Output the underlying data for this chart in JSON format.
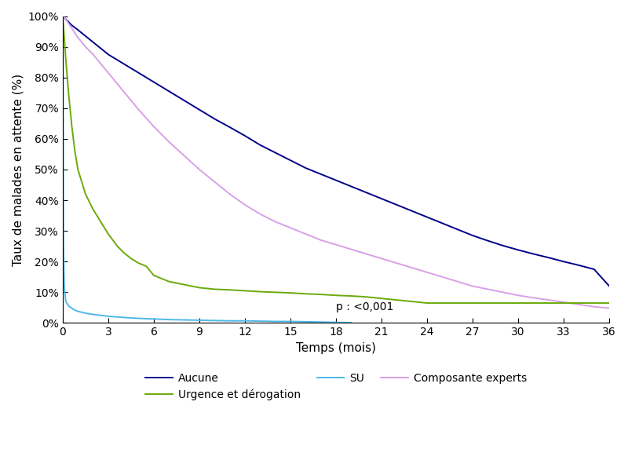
{
  "xlabel": "Temps (mois)",
  "ylabel": "Taux de malades en attente (%)",
  "annotation": "p : <0,001",
  "x_ticks": [
    0,
    3,
    6,
    9,
    12,
    15,
    18,
    21,
    24,
    27,
    30,
    33,
    36
  ],
  "x_lim": [
    0,
    36
  ],
  "y_lim": [
    0,
    1.0
  ],
  "y_ticks": [
    0.0,
    0.1,
    0.2,
    0.3,
    0.4,
    0.5,
    0.6,
    0.7,
    0.8,
    0.9,
    1.0
  ],
  "y_tick_labels": [
    "0%",
    "10%",
    "20%",
    "30%",
    "40%",
    "50%",
    "60%",
    "70%",
    "80%",
    "90%",
    "100%"
  ],
  "series": {
    "Aucune": {
      "color": "#00008B",
      "linewidth": 1.4,
      "x": [
        0,
        0.3,
        0.6,
        1,
        1.5,
        2,
        2.5,
        3,
        4,
        5,
        6,
        7,
        8,
        9,
        10,
        11,
        12,
        13,
        14,
        15,
        16,
        17,
        18,
        19,
        20,
        21,
        22,
        23,
        24,
        25,
        26,
        27,
        28,
        29,
        30,
        31,
        32,
        33,
        34,
        35,
        36
      ],
      "y": [
        1.0,
        0.985,
        0.97,
        0.955,
        0.935,
        0.915,
        0.895,
        0.875,
        0.845,
        0.815,
        0.785,
        0.755,
        0.725,
        0.695,
        0.665,
        0.638,
        0.61,
        0.58,
        0.555,
        0.53,
        0.505,
        0.485,
        0.465,
        0.445,
        0.425,
        0.405,
        0.385,
        0.365,
        0.345,
        0.325,
        0.305,
        0.285,
        0.268,
        0.252,
        0.238,
        0.225,
        0.213,
        0.2,
        0.188,
        0.175,
        0.12
      ]
    },
    "Urgence et dérogation": {
      "color": "#6aaa0a",
      "linewidth": 1.4,
      "x": [
        0,
        0.2,
        0.4,
        0.6,
        0.8,
        1,
        1.5,
        2,
        2.5,
        3,
        3.3,
        3.6,
        4,
        4.5,
        5,
        5.5,
        6,
        6.5,
        7,
        8,
        9,
        10,
        11,
        12,
        13,
        14,
        15,
        16,
        17,
        18,
        19,
        20,
        21,
        22,
        23,
        24,
        36
      ],
      "y": [
        1.0,
        0.86,
        0.74,
        0.64,
        0.56,
        0.5,
        0.42,
        0.37,
        0.33,
        0.29,
        0.27,
        0.25,
        0.23,
        0.21,
        0.195,
        0.185,
        0.155,
        0.145,
        0.135,
        0.125,
        0.115,
        0.11,
        0.108,
        0.105,
        0.102,
        0.1,
        0.098,
        0.095,
        0.093,
        0.09,
        0.088,
        0.085,
        0.08,
        0.075,
        0.07,
        0.065,
        0.065
      ]
    },
    "SU": {
      "color": "#4eb8e8",
      "linewidth": 1.4,
      "x": [
        0,
        0.05,
        0.1,
        0.2,
        0.4,
        0.6,
        0.8,
        1,
        1.5,
        2,
        2.5,
        3,
        4,
        5,
        6,
        7,
        8,
        9,
        10,
        11,
        12,
        13,
        14,
        15,
        16,
        17,
        18,
        19
      ],
      "y": [
        1.0,
        0.25,
        0.12,
        0.07,
        0.055,
        0.048,
        0.042,
        0.038,
        0.032,
        0.028,
        0.025,
        0.022,
        0.018,
        0.015,
        0.013,
        0.011,
        0.01,
        0.009,
        0.008,
        0.007,
        0.007,
        0.006,
        0.005,
        0.005,
        0.004,
        0.003,
        0.002,
        0.001
      ]
    },
    "Composante experts": {
      "color": "#d8a0e8",
      "linewidth": 1.4,
      "x": [
        0,
        0.2,
        0.4,
        0.6,
        0.8,
        1,
        1.5,
        2,
        2.5,
        3,
        4,
        5,
        6,
        7,
        8,
        9,
        10,
        11,
        12,
        13,
        14,
        15,
        16,
        17,
        18,
        19,
        20,
        21,
        22,
        23,
        24,
        25,
        26,
        27,
        28,
        29,
        30,
        31,
        32,
        33,
        34,
        35,
        36
      ],
      "y": [
        1.0,
        0.99,
        0.975,
        0.96,
        0.945,
        0.93,
        0.9,
        0.875,
        0.845,
        0.815,
        0.755,
        0.695,
        0.64,
        0.59,
        0.545,
        0.5,
        0.46,
        0.42,
        0.385,
        0.355,
        0.33,
        0.31,
        0.29,
        0.27,
        0.255,
        0.24,
        0.225,
        0.21,
        0.195,
        0.18,
        0.165,
        0.15,
        0.135,
        0.12,
        0.11,
        0.1,
        0.09,
        0.082,
        0.075,
        0.068,
        0.06,
        0.053,
        0.048
      ]
    }
  },
  "legend_order": [
    "Aucune",
    "Urgence et dérogation",
    "SU",
    "Composante experts"
  ],
  "background_color": "#ffffff"
}
